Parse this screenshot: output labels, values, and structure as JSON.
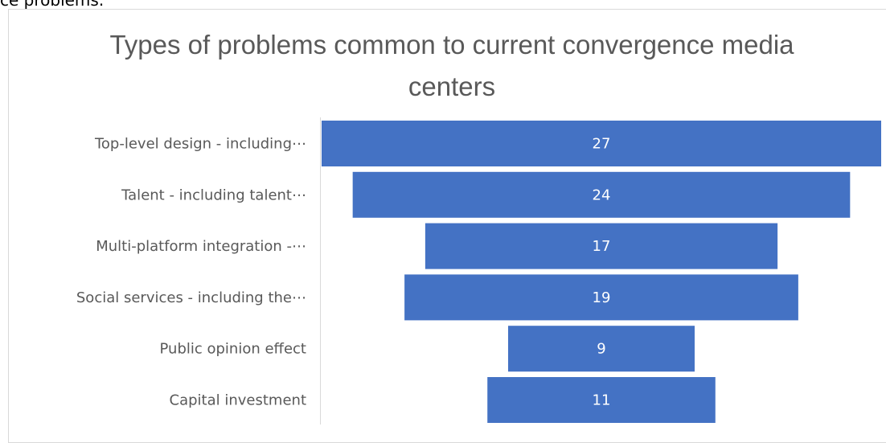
{
  "top_caption": "ce problems.",
  "chart_data": {
    "type": "bar",
    "subtype": "funnel",
    "title_lines": [
      "Types of problems common to current convergence media",
      "centers"
    ],
    "title": "Types of problems common to current convergence media centers",
    "categories": [
      "Top-level design - including⋯",
      "Talent - including talent⋯",
      "Multi-platform integration -⋯",
      "Social services - including the⋯",
      "Public opinion effect",
      "Capital investment"
    ],
    "values": [
      27,
      24,
      17,
      19,
      9,
      11
    ],
    "xlabel": "",
    "ylabel": "",
    "xlim": [
      0,
      27
    ],
    "grid": false,
    "legend": "none"
  },
  "colors": {
    "bar": "#4472c4",
    "value_text": "#ffffff",
    "label_text": "#595959",
    "title_text": "#595959",
    "axis_line": "#d9d9d9"
  }
}
